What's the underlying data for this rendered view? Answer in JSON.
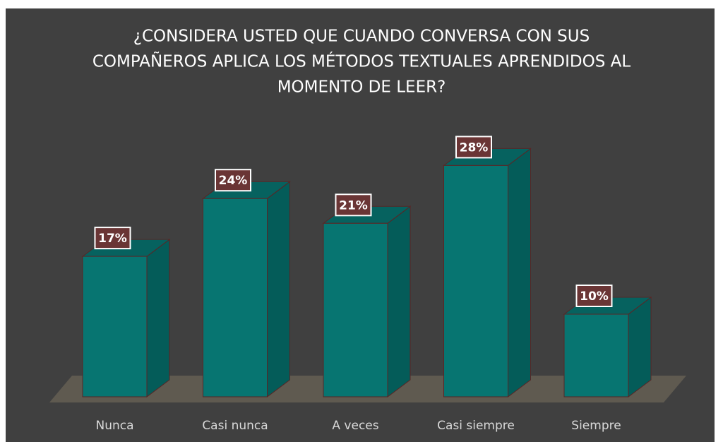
{
  "chart_data": {
    "type": "bar3d",
    "title": [
      "¿CONSIDERA USTED QUE CUANDO CONVERSA CON SUS",
      "COMPAÑEROS APLICA LOS MÉTODOS TEXTUALES APRENDIDOS AL",
      "MOMENTO DE LEER?"
    ],
    "categories": [
      "Nunca",
      "Casi nunca",
      "A veces",
      "Casi siempre",
      "Siempre"
    ],
    "values": [
      17,
      24,
      21,
      28,
      10
    ],
    "value_labels": [
      "17%",
      "24%",
      "21%",
      "28%",
      "10%"
    ],
    "color": "#077571"
  }
}
